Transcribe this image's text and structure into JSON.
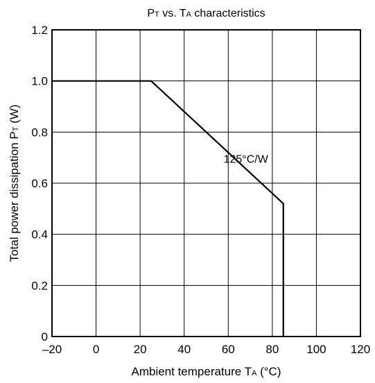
{
  "chart_data": {
    "type": "line",
    "title": {
      "parts": [
        {
          "text": "P",
          "sub": false
        },
        {
          "text": "T",
          "sub": true
        },
        {
          "text": " vs. T",
          "sub": false
        },
        {
          "text": "A",
          "sub": true
        },
        {
          "text": " characteristics",
          "sub": false
        }
      ]
    },
    "xlabel": {
      "parts": [
        {
          "text": "Ambient temperature T",
          "sub": false
        },
        {
          "text": "A",
          "sub": true
        },
        {
          "text": " (°C)",
          "sub": false
        }
      ]
    },
    "ylabel": {
      "parts": [
        {
          "text": "Total power dissipation  P",
          "sub": false
        },
        {
          "text": "T",
          "sub": true
        },
        {
          "text": "  (W)",
          "sub": false
        }
      ]
    },
    "xlim": [
      -20,
      120
    ],
    "ylim": [
      0,
      1.2
    ],
    "x_ticks": [
      -20,
      0,
      20,
      40,
      60,
      80,
      100,
      120
    ],
    "x_tick_labels": [
      "–20",
      "0",
      "20",
      "40",
      "60",
      "80",
      "100",
      "120"
    ],
    "y_ticks": [
      0,
      0.2,
      0.4,
      0.6,
      0.8,
      1.0,
      1.2
    ],
    "y_tick_labels": [
      "0",
      "0.2",
      "0.4",
      "0.6",
      "0.8",
      "1.0",
      "1.2"
    ],
    "grid": true,
    "series": [
      {
        "x": [
          -20,
          25,
          85,
          85
        ],
        "y": [
          1.0,
          1.0,
          0.52,
          0
        ]
      }
    ],
    "annotations": [
      {
        "text": "125°C/W",
        "x": 68,
        "y": 0.68
      }
    ]
  }
}
